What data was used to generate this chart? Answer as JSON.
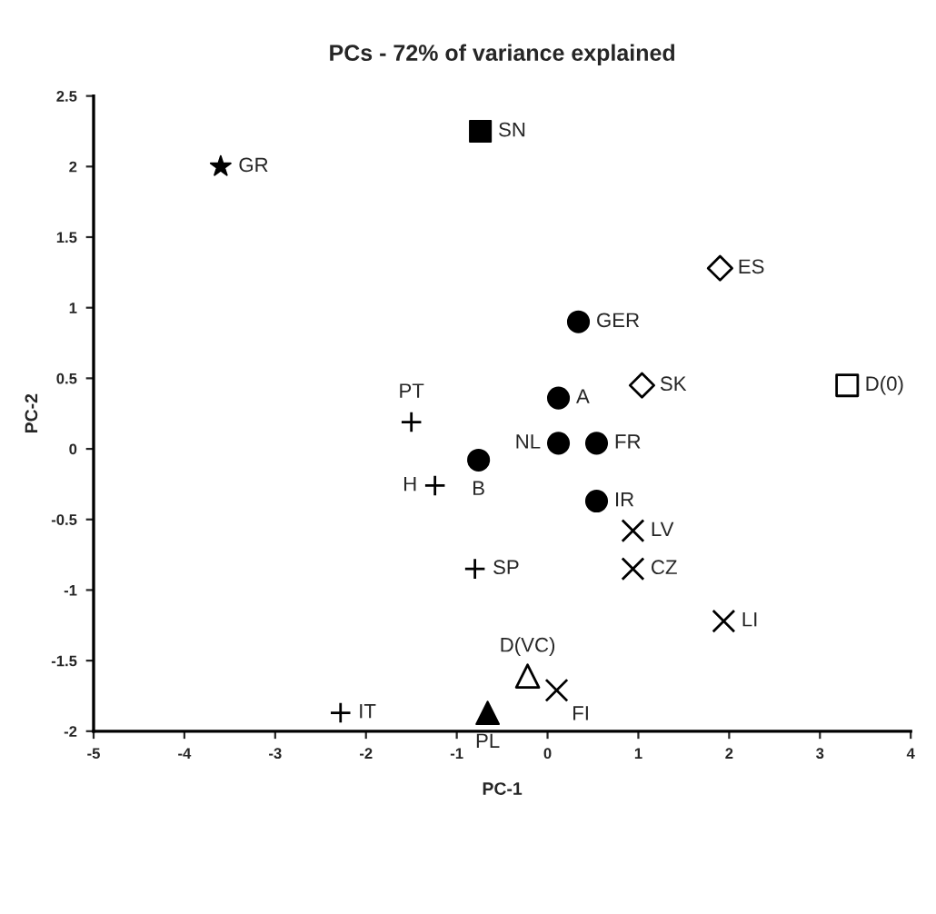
{
  "chart_data": {
    "type": "scatter",
    "title": "PCs - 72% of variance explained",
    "xlabel": "PC-1",
    "ylabel": "PC-2",
    "xlim": [
      -5,
      4
    ],
    "xticks": [
      -5,
      -4,
      -3,
      -2,
      -1,
      0,
      1,
      2,
      3,
      4
    ],
    "ylim": [
      -2,
      2.5
    ],
    "yticks": [
      -2,
      -1.5,
      -1,
      -0.5,
      0,
      0.5,
      1,
      1.5,
      2,
      2.5
    ],
    "grid": false,
    "legend": false,
    "series": [
      {
        "color": "#000000",
        "marker": "circle",
        "x": [
          0.34,
          0.12,
          0.12,
          0.54,
          -0.76,
          0.54
        ],
        "values": [
          0.9,
          0.36,
          0.04,
          0.04,
          -0.08,
          -0.37
        ]
      },
      {
        "color": "#000000",
        "marker": "square",
        "x": [
          -0.74
        ],
        "values": [
          2.25
        ]
      },
      {
        "color": "#000000",
        "marker": "star",
        "x": [
          -3.6
        ],
        "values": [
          2.0
        ]
      },
      {
        "color": "#000000",
        "marker": "diamond",
        "x": [
          1.9,
          1.04
        ],
        "values": [
          1.28,
          0.45
        ]
      },
      {
        "color": "#000000",
        "marker": "square",
        "x": [
          3.3
        ],
        "values": [
          0.45
        ]
      },
      {
        "color": "#000000",
        "marker": "plus",
        "x": [
          -1.5,
          -1.24,
          -0.8,
          -2.28
        ],
        "values": [
          0.19,
          -0.26,
          -0.85,
          -1.87
        ]
      },
      {
        "color": "#000000",
        "marker": "cross",
        "x": [
          0.94,
          0.94,
          1.94,
          0.1
        ],
        "values": [
          -0.58,
          -0.85,
          -1.22,
          -1.71
        ]
      },
      {
        "color": "#000000",
        "marker": "triangle",
        "x": [
          -0.22
        ],
        "values": [
          -1.61
        ]
      },
      {
        "color": "#000000",
        "marker": "triangle",
        "x": [
          -0.66
        ],
        "values": [
          -1.87
        ]
      }
    ],
    "annotations": [
      {
        "text": "GER",
        "x": 0.34,
        "y": 0.9
      },
      {
        "text": "A",
        "x": 0.12,
        "y": 0.36
      },
      {
        "text": "NL",
        "x": 0.12,
        "y": 0.04
      },
      {
        "text": "FR",
        "x": 0.54,
        "y": 0.04
      },
      {
        "text": "B",
        "x": -0.76,
        "y": -0.08
      },
      {
        "text": "IR",
        "x": 0.54,
        "y": -0.37
      },
      {
        "text": "SN",
        "x": -0.74,
        "y": 2.25
      },
      {
        "text": "GR",
        "x": -3.6,
        "y": 2.0
      },
      {
        "text": "ES",
        "x": 1.9,
        "y": 1.28
      },
      {
        "text": "SK",
        "x": 1.04,
        "y": 0.45
      },
      {
        "text": "D(0)",
        "x": 3.3,
        "y": 0.45
      },
      {
        "text": "PT",
        "x": -1.5,
        "y": 0.19
      },
      {
        "text": "H",
        "x": -1.24,
        "y": -0.26
      },
      {
        "text": "SP",
        "x": -0.8,
        "y": -0.85
      },
      {
        "text": "IT",
        "x": -2.28,
        "y": -1.87
      },
      {
        "text": "LV",
        "x": 0.94,
        "y": -0.58
      },
      {
        "text": "CZ",
        "x": 0.94,
        "y": -0.85
      },
      {
        "text": "LI",
        "x": 1.94,
        "y": -1.22
      },
      {
        "text": "FI",
        "x": 0.1,
        "y": -1.71
      },
      {
        "text": "D(VC)",
        "x": -0.22,
        "y": -1.61
      },
      {
        "text": "PL",
        "x": -0.66,
        "y": -1.87
      }
    ]
  }
}
